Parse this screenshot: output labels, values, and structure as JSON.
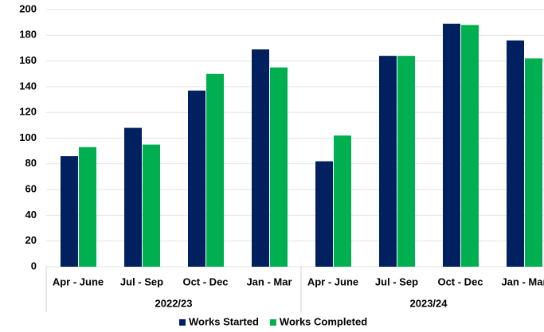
{
  "chart_data": {
    "type": "bar",
    "categories": [
      "Apr - June",
      "Jul - Sep",
      "Oct - Dec",
      "Jan - Mar",
      "Apr - June",
      "Jul - Sep",
      "Oct - Dec",
      "Jan - Mar"
    ],
    "category_groups": [
      "2022/23",
      "2023/24"
    ],
    "series": [
      {
        "name": "Works Started",
        "color": "#002060",
        "values": [
          86,
          108,
          137,
          169,
          82,
          164,
          189,
          176
        ]
      },
      {
        "name": "Works Completed",
        "color": "#00b050",
        "values": [
          93,
          95,
          150,
          155,
          102,
          164,
          188,
          162
        ]
      }
    ],
    "ylim": [
      0,
      200
    ],
    "yticks": [
      0,
      20,
      40,
      60,
      80,
      100,
      120,
      140,
      160,
      180,
      200
    ],
    "grid": true,
    "legend": "bottom"
  }
}
